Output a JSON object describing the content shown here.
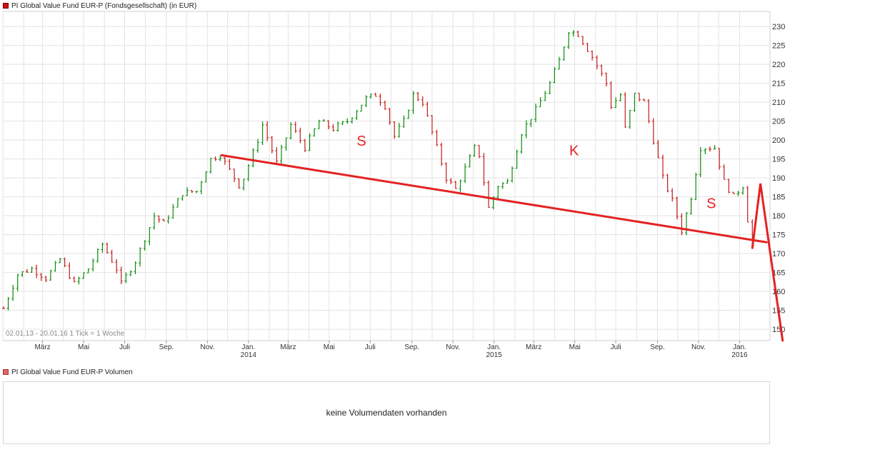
{
  "price_legend": {
    "label": "PI Global Value Fund EUR-P (Fondsgesellschaft) (in EUR)",
    "color": "#cc1111"
  },
  "volume_legend": {
    "label": "PI Global Value Fund EUR-P Volumen",
    "color": "#d96a6a"
  },
  "volume_panel": {
    "message": "keine Volumendaten vorhanden"
  },
  "colors": {
    "up": "#0a8a0a",
    "down": "#c41a1a",
    "annotation": "#e32222",
    "grid": "#e3e3e3",
    "frame": "#cfcfcf"
  },
  "chart_data": {
    "type": "ohlc",
    "info": "02.01.13 - 20.01.16   1 Tick = 1 Woche",
    "y_range": [
      147,
      234
    ],
    "y_ticks": [
      150,
      155,
      160,
      165,
      170,
      175,
      180,
      185,
      190,
      195,
      200,
      205,
      210,
      215,
      220,
      225,
      230
    ],
    "x_domain": [
      "2013-01-01",
      "2016-01-25"
    ],
    "x_ticks": [
      {
        "date": "2013-03-01",
        "label": "März",
        "year": ""
      },
      {
        "date": "2013-05-01",
        "label": "Mai",
        "year": ""
      },
      {
        "date": "2013-07-01",
        "label": "Juli",
        "year": ""
      },
      {
        "date": "2013-09-01",
        "label": "Sep.",
        "year": ""
      },
      {
        "date": "2013-11-01",
        "label": "Nov.",
        "year": ""
      },
      {
        "date": "2014-01-01",
        "label": "Jan.",
        "year": "2014"
      },
      {
        "date": "2014-03-01",
        "label": "März",
        "year": ""
      },
      {
        "date": "2014-05-01",
        "label": "Mai",
        "year": ""
      },
      {
        "date": "2014-07-01",
        "label": "Juli",
        "year": ""
      },
      {
        "date": "2014-09-01",
        "label": "Sep.",
        "year": ""
      },
      {
        "date": "2014-11-01",
        "label": "Nov.",
        "year": ""
      },
      {
        "date": "2015-01-01",
        "label": "Jan.",
        "year": "2015"
      },
      {
        "date": "2015-03-01",
        "label": "März",
        "year": ""
      },
      {
        "date": "2015-05-01",
        "label": "Mai",
        "year": ""
      },
      {
        "date": "2015-07-01",
        "label": "Juli",
        "year": ""
      },
      {
        "date": "2015-09-01",
        "label": "Sep.",
        "year": ""
      },
      {
        "date": "2015-11-01",
        "label": "Nov.",
        "year": ""
      },
      {
        "date": "2016-01-01",
        "label": "Jan.",
        "year": "2016"
      }
    ],
    "trend_anchors": [
      {
        "date": "2013-01-02",
        "value": 155.5
      },
      {
        "date": "2013-01-23",
        "value": 164.5
      },
      {
        "date": "2013-02-13",
        "value": 166
      },
      {
        "date": "2013-03-06",
        "value": 163.5
      },
      {
        "date": "2013-03-27",
        "value": 168.5
      },
      {
        "date": "2013-04-17",
        "value": 162
      },
      {
        "date": "2013-05-08",
        "value": 166
      },
      {
        "date": "2013-05-29",
        "value": 172.5
      },
      {
        "date": "2013-06-19",
        "value": 166
      },
      {
        "date": "2013-06-26",
        "value": 162
      },
      {
        "date": "2013-07-17",
        "value": 168
      },
      {
        "date": "2013-08-14",
        "value": 180
      },
      {
        "date": "2013-08-28",
        "value": 178
      },
      {
        "date": "2013-09-25",
        "value": 186
      },
      {
        "date": "2013-10-16",
        "value": 186.5
      },
      {
        "date": "2013-11-06",
        "value": 195
      },
      {
        "date": "2013-11-20",
        "value": 196
      },
      {
        "date": "2013-12-18",
        "value": 188
      },
      {
        "date": "2013-12-25",
        "value": 190
      },
      {
        "date": "2014-01-15",
        "value": 200
      },
      {
        "date": "2014-01-22",
        "value": 204
      },
      {
        "date": "2014-02-12",
        "value": 194
      },
      {
        "date": "2014-03-05",
        "value": 204
      },
      {
        "date": "2014-03-26",
        "value": 198
      },
      {
        "date": "2014-04-16",
        "value": 205
      },
      {
        "date": "2014-05-07",
        "value": 203
      },
      {
        "date": "2014-05-28",
        "value": 205
      },
      {
        "date": "2014-06-25",
        "value": 211
      },
      {
        "date": "2014-07-09",
        "value": 212
      },
      {
        "date": "2014-07-23",
        "value": 209
      },
      {
        "date": "2014-08-06",
        "value": 201
      },
      {
        "date": "2014-08-20",
        "value": 205
      },
      {
        "date": "2014-09-03",
        "value": 212
      },
      {
        "date": "2014-09-17",
        "value": 210
      },
      {
        "date": "2014-10-08",
        "value": 198
      },
      {
        "date": "2014-10-22",
        "value": 190
      },
      {
        "date": "2014-11-05",
        "value": 187
      },
      {
        "date": "2014-12-03",
        "value": 198
      },
      {
        "date": "2014-12-10",
        "value": 196
      },
      {
        "date": "2014-12-24",
        "value": 182
      },
      {
        "date": "2015-01-07",
        "value": 188
      },
      {
        "date": "2015-01-21",
        "value": 189
      },
      {
        "date": "2015-02-11",
        "value": 202
      },
      {
        "date": "2015-03-04",
        "value": 208
      },
      {
        "date": "2015-03-25",
        "value": 215
      },
      {
        "date": "2015-04-08",
        "value": 221
      },
      {
        "date": "2015-04-22",
        "value": 229
      },
      {
        "date": "2015-05-06",
        "value": 228
      },
      {
        "date": "2015-05-27",
        "value": 222
      },
      {
        "date": "2015-06-17",
        "value": 215
      },
      {
        "date": "2015-06-24",
        "value": 209
      },
      {
        "date": "2015-07-08",
        "value": 212
      },
      {
        "date": "2015-07-15",
        "value": 203
      },
      {
        "date": "2015-07-29",
        "value": 212
      },
      {
        "date": "2015-08-12",
        "value": 210
      },
      {
        "date": "2015-08-26",
        "value": 200
      },
      {
        "date": "2015-09-09",
        "value": 190
      },
      {
        "date": "2015-09-23",
        "value": 184
      },
      {
        "date": "2015-10-07",
        "value": 176
      },
      {
        "date": "2015-10-21",
        "value": 185
      },
      {
        "date": "2015-11-04",
        "value": 198
      },
      {
        "date": "2015-11-25",
        "value": 198
      },
      {
        "date": "2015-12-09",
        "value": 189
      },
      {
        "date": "2015-12-23",
        "value": 185
      },
      {
        "date": "2016-01-06",
        "value": 188
      },
      {
        "date": "2016-01-13",
        "value": 179
      },
      {
        "date": "2016-01-20",
        "value": 172
      }
    ],
    "annotations": {
      "labels": [
        {
          "text": "S",
          "date": "2014-06-18",
          "value": 200
        },
        {
          "text": "K",
          "date": "2015-04-30",
          "value": 197.5
        },
        {
          "text": "S",
          "date": "2015-11-20",
          "value": 183.5
        }
      ],
      "neckline": [
        {
          "date": "2013-11-22",
          "value": 196
        },
        {
          "date": "2016-02-10",
          "value": 173
        }
      ],
      "projection": [
        {
          "date": "2016-01-20",
          "value": 171.5
        },
        {
          "date": "2016-02-01",
          "value": 188.5
        },
        {
          "date": "2016-03-05",
          "value": 147
        }
      ]
    }
  }
}
